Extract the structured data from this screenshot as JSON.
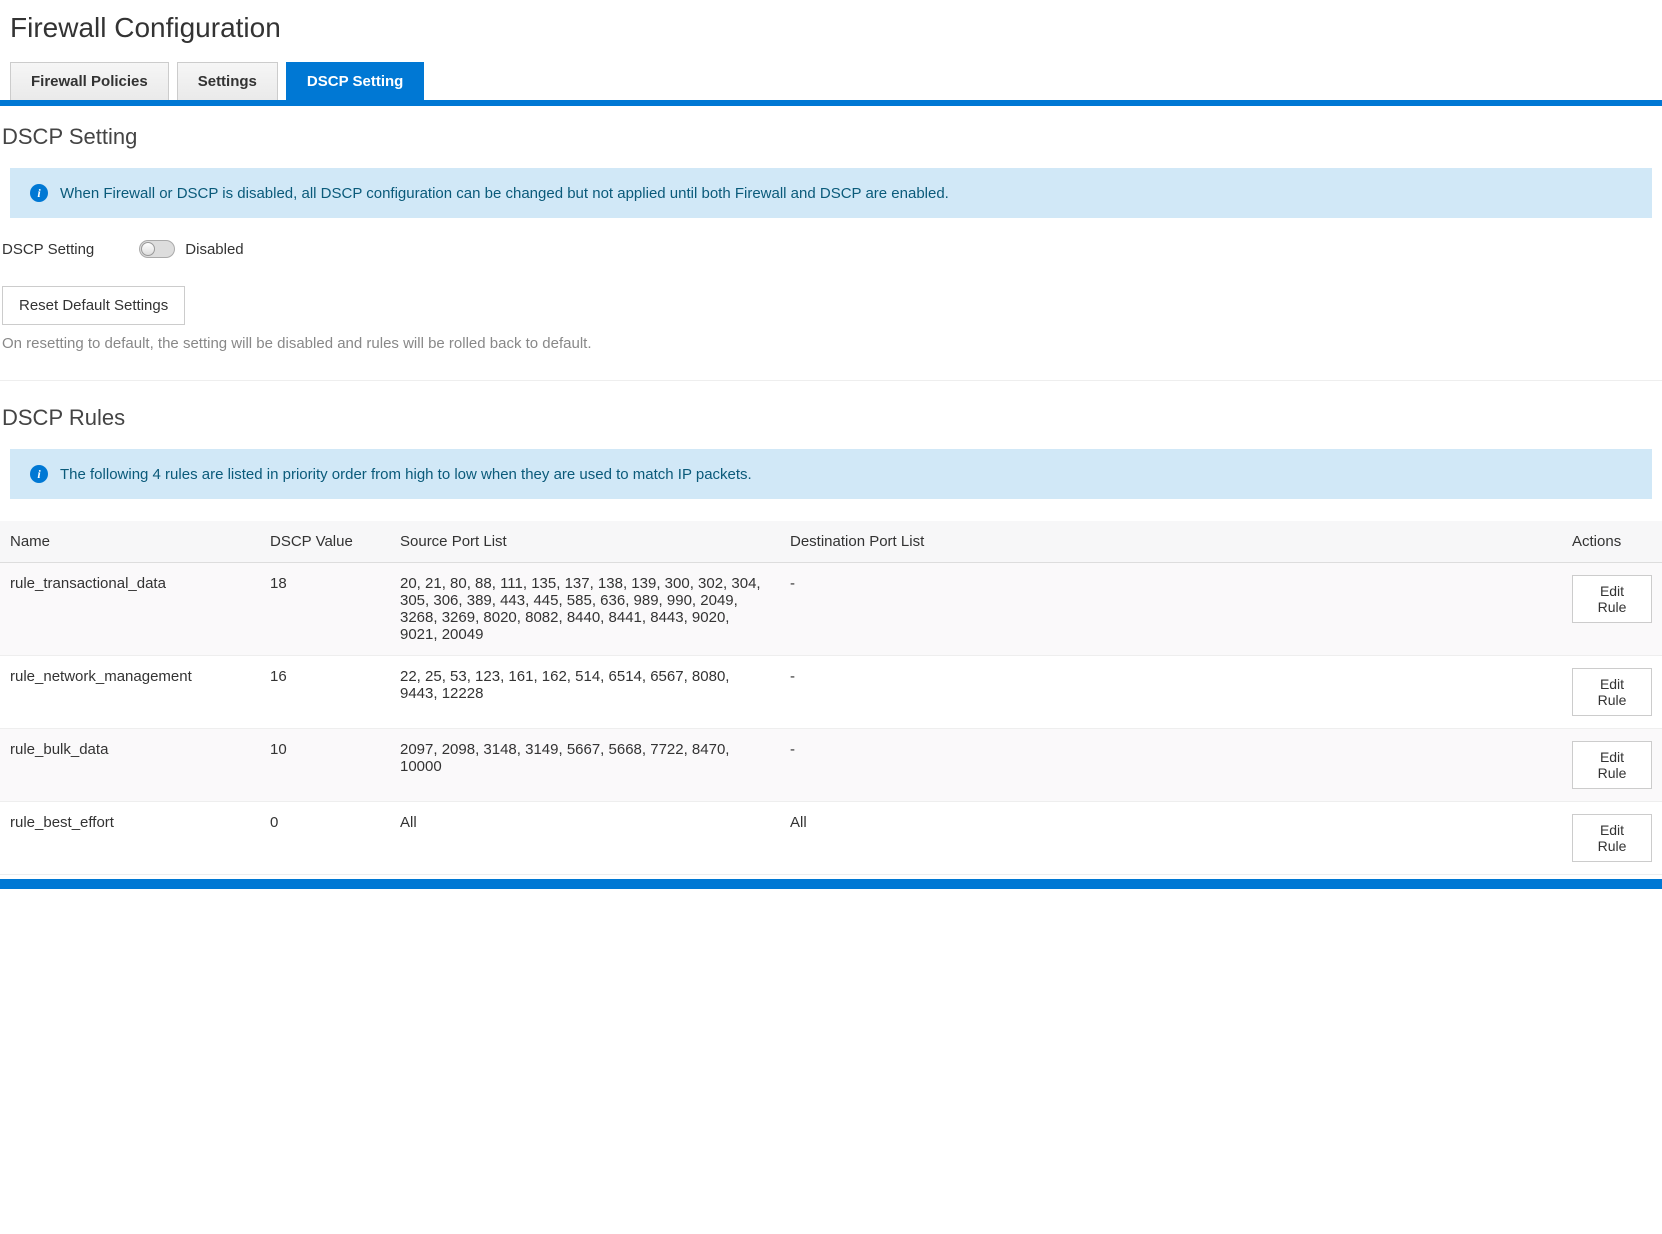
{
  "page": {
    "title": "Firewall Configuration"
  },
  "tabs": [
    {
      "label": "Firewall Policies",
      "active": false
    },
    {
      "label": "Settings",
      "active": false
    },
    {
      "label": "DSCP Setting",
      "active": true
    }
  ],
  "dscp_setting": {
    "section_title": "DSCP Setting",
    "info_text": "When Firewall or DSCP is disabled, all DSCP configuration can be changed but not applied until both Firewall and DSCP are enabled.",
    "label": "DSCP Setting",
    "status": "Disabled",
    "reset_button": "Reset Default Settings",
    "reset_hint": "On resetting to default, the setting will be disabled and rules will be rolled back to default."
  },
  "dscp_rules": {
    "section_title": "DSCP Rules",
    "info_text": "The following 4 rules are listed in priority order from high to low when they are used to match IP packets.",
    "columns": {
      "name": "Name",
      "dscp_value": "DSCP Value",
      "source_ports": "Source Port List",
      "dest_ports": "Destination Port List",
      "actions": "Actions"
    },
    "edit_label": "Edit Rule",
    "rows": [
      {
        "name": "rule_transactional_data",
        "dscp_value": "18",
        "source_ports": "20, 21, 80, 88, 111, 135, 137, 138, 139, 300, 302, 304, 305, 306, 389, 443, 445, 585, 636, 989, 990, 2049, 3268, 3269, 8020, 8082, 8440, 8441, 8443, 9020, 9021, 20049",
        "dest_ports": "-"
      },
      {
        "name": "rule_network_management",
        "dscp_value": "16",
        "source_ports": "22, 25, 53, 123, 161, 162, 514, 6514, 6567, 8080, 9443, 12228",
        "dest_ports": "-"
      },
      {
        "name": "rule_bulk_data",
        "dscp_value": "10",
        "source_ports": "2097, 2098, 3148, 3149, 5667, 5668, 7722, 8470, 10000",
        "dest_ports": "-"
      },
      {
        "name": "rule_best_effort",
        "dscp_value": "0",
        "source_ports": "All",
        "dest_ports": "All"
      }
    ]
  },
  "colors": {
    "accent": "#0078d4",
    "info_bg": "#d1e8f7",
    "info_text": "#0a5a7a"
  }
}
